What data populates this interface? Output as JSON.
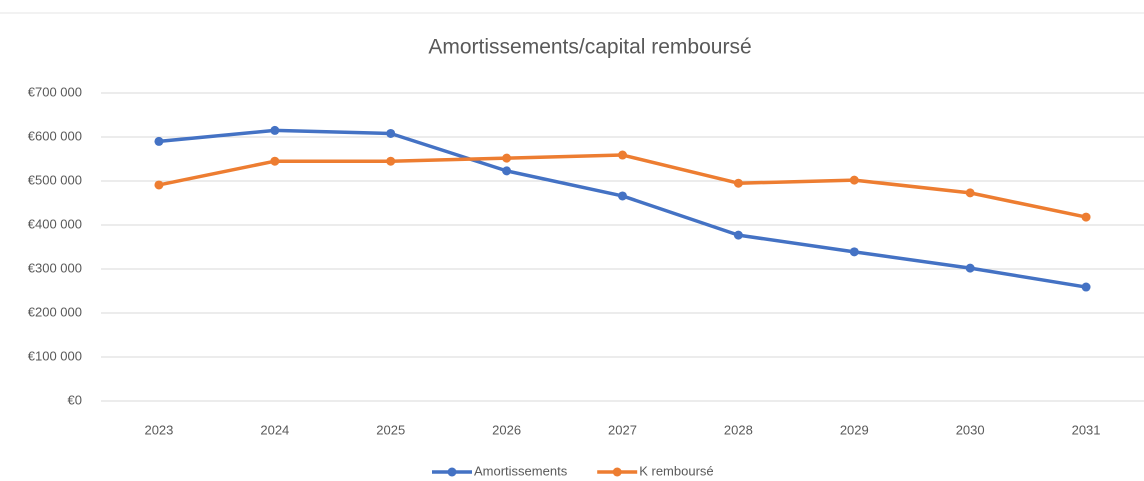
{
  "chart_data": {
    "type": "line",
    "title": "Amortissements/capital remboursé",
    "categories": [
      "2023",
      "2024",
      "2025",
      "2026",
      "2027",
      "2028",
      "2029",
      "2030",
      "2031"
    ],
    "series": [
      {
        "name": "Amortissements",
        "color": "#4472c4",
        "values": [
          590000,
          615000,
          608000,
          523000,
          466000,
          377000,
          339000,
          302000,
          259000
        ]
      },
      {
        "name": "K remboursé",
        "color": "#ed7d31",
        "values": [
          491000,
          545000,
          545000,
          552000,
          559000,
          495000,
          502000,
          473000,
          418000
        ]
      }
    ],
    "ylim": [
      0,
      700000
    ],
    "yticks": [
      {
        "value": 0,
        "label": "€0"
      },
      {
        "value": 100000,
        "label": "€100 000"
      },
      {
        "value": 200000,
        "label": "€200 000"
      },
      {
        "value": 300000,
        "label": "€300 000"
      },
      {
        "value": 400000,
        "label": "€400 000"
      },
      {
        "value": 500000,
        "label": "€500 000"
      },
      {
        "value": 600000,
        "label": "€600 000"
      },
      {
        "value": 700000,
        "label": "€700 000"
      }
    ],
    "grid": true,
    "legend": "bottom"
  }
}
